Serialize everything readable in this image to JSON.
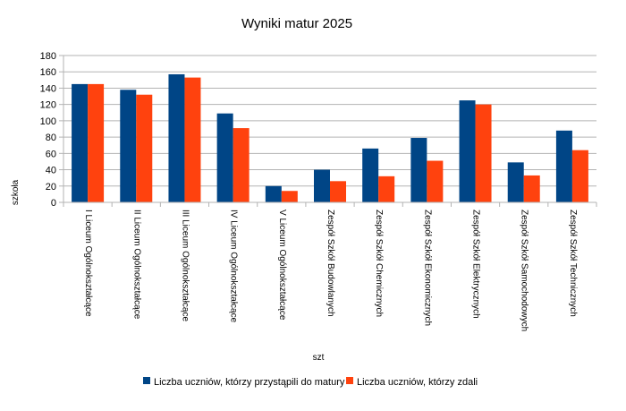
{
  "chart_data": {
    "type": "bar",
    "title": "Wyniki matur 2025",
    "xlabel": "szt",
    "ylabel": "szkoła",
    "ylim": [
      0,
      180
    ],
    "yticks": [
      0,
      20,
      40,
      60,
      80,
      100,
      120,
      140,
      160,
      180
    ],
    "grid": true,
    "legend_position": "bottom",
    "categories": [
      "I Liceum Ogólnokształcące",
      "II Liceum Ogólnokształcące",
      "III Liceum Ogólnokształcące",
      "IV Liceum Ogólnokształcące",
      "V Liceum Ogólnokształcące",
      "Zespół Szkół Budowlanych",
      "Zespół Szkół Chemicznych",
      "Zespół Szkół Ekonomicznych",
      "Zespół Szkół Elektrycznych",
      "Zespół Szkół Samochodowych",
      "Zespół Szkół Technicznych"
    ],
    "series": [
      {
        "name": "Liczba uczniów, którzy przystąpili do matury",
        "color": "#004586",
        "values": [
          145,
          138,
          157,
          109,
          20,
          40,
          66,
          79,
          125,
          49,
          88
        ]
      },
      {
        "name": "Liczba uczniów, którzy zdali",
        "color": "#ff420e",
        "values": [
          145,
          132,
          153,
          91,
          14,
          26,
          32,
          51,
          120,
          33,
          64
        ]
      }
    ]
  }
}
